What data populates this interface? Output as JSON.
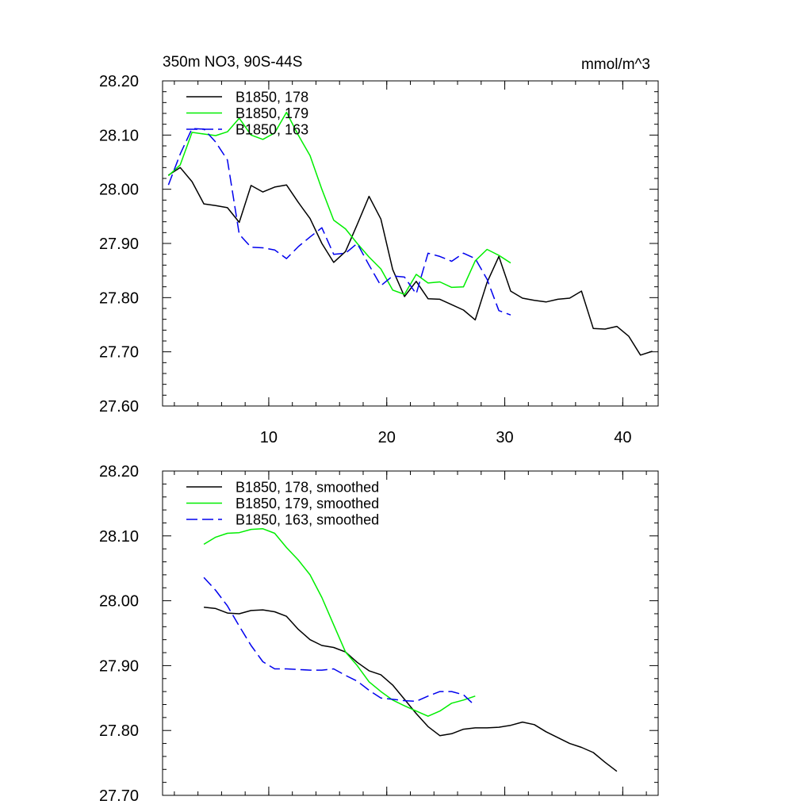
{
  "chart_data": [
    {
      "type": "line",
      "title_left": "350m NO3, 90S-44S",
      "title_right": "mmol/m^3",
      "xlim": [
        1,
        43
      ],
      "ylim": [
        27.6,
        28.2
      ],
      "x_ticks": [
        10,
        20,
        30,
        40
      ],
      "x_tick_labels": [
        "10",
        "20",
        "30",
        "40"
      ],
      "y_ticks": [
        27.6,
        27.7,
        27.8,
        27.9,
        28.0,
        28.1,
        28.2
      ],
      "y_tick_labels": [
        "27.60",
        "27.70",
        "27.80",
        "27.90",
        "28.00",
        "28.10",
        "28.20"
      ],
      "grid": false,
      "legend_position": "top-left",
      "series": [
        {
          "name": "B1850, 178",
          "color": "#000000",
          "dash": "solid",
          "x": [
            1.5,
            2.5,
            3.5,
            4.5,
            5.5,
            6.5,
            7.5,
            8.5,
            9.5,
            10.5,
            11.5,
            12.5,
            13.5,
            14.5,
            15.5,
            16.5,
            17.5,
            18.5,
            19.5,
            20.5,
            21.5,
            22.5,
            23.5,
            24.5,
            25.5,
            26.5,
            27.5,
            28.5,
            29.5,
            30.5,
            31.5,
            32.5,
            33.5,
            34.5,
            35.5,
            36.5,
            37.5,
            38.5,
            39.5,
            40.5,
            41.5,
            42.5
          ],
          "y": [
            28.026,
            28.04,
            28.014,
            27.973,
            27.97,
            27.966,
            27.939,
            28.007,
            27.995,
            28.004,
            28.008,
            27.976,
            27.946,
            27.9,
            27.865,
            27.885,
            27.935,
            27.987,
            27.945,
            27.852,
            27.802,
            27.83,
            27.798,
            27.797,
            27.787,
            27.777,
            27.759,
            27.828,
            27.876,
            27.812,
            27.799,
            27.795,
            27.792,
            27.797,
            27.799,
            27.812,
            27.743,
            27.742,
            27.747,
            27.729,
            27.694,
            27.701
          ]
        },
        {
          "name": "B1850, 179",
          "color": "#00ee00",
          "dash": "solid",
          "x": [
            1.5,
            2.5,
            3.5,
            4.5,
            5.5,
            6.5,
            7.5,
            8.5,
            9.5,
            10.5,
            11.5,
            12.5,
            13.5,
            14.5,
            15.5,
            16.5,
            17.5,
            18.5,
            19.5,
            20.5,
            21.5,
            22.5,
            23.5,
            24.5,
            25.5,
            26.5,
            27.5,
            28.5,
            29.5,
            30.5
          ],
          "y": [
            28.025,
            28.045,
            28.105,
            28.102,
            28.099,
            28.106,
            28.131,
            28.1,
            28.092,
            28.104,
            28.142,
            28.1,
            28.062,
            28.0,
            27.943,
            27.927,
            27.9,
            27.875,
            27.853,
            27.814,
            27.806,
            27.843,
            27.827,
            27.829,
            27.819,
            27.82,
            27.868,
            27.889,
            27.878,
            27.864
          ]
        },
        {
          "name": "B1850, 163",
          "color": "#0000ee",
          "dash": "dashed",
          "x": [
            1.5,
            2.5,
            3.5,
            4.5,
            5.5,
            6.5,
            7.5,
            8.5,
            9.5,
            10.5,
            11.5,
            12.5,
            13.5,
            14.5,
            15.5,
            16.5,
            17.5,
            18.5,
            19.5,
            20.5,
            21.5,
            22.5,
            23.5,
            24.5,
            25.5,
            26.5,
            27.5,
            28.5,
            29.5,
            30.5
          ],
          "y": [
            28.008,
            28.065,
            28.112,
            28.111,
            28.087,
            28.054,
            27.917,
            27.893,
            27.892,
            27.888,
            27.872,
            27.894,
            27.912,
            27.929,
            27.88,
            27.882,
            27.9,
            27.86,
            27.822,
            27.84,
            27.838,
            27.807,
            27.882,
            27.876,
            27.867,
            27.882,
            27.872,
            27.834,
            27.776,
            27.768
          ]
        }
      ]
    },
    {
      "type": "line",
      "xlim": [
        1,
        43
      ],
      "ylim": [
        27.7,
        28.2
      ],
      "x_ticks": [
        10,
        20,
        30,
        40
      ],
      "y_ticks": [
        27.7,
        27.8,
        27.9,
        28.0,
        28.1,
        28.2
      ],
      "y_tick_labels": [
        "27.70",
        "27.80",
        "27.90",
        "28.00",
        "28.10",
        "28.20"
      ],
      "grid": false,
      "legend_position": "top-left",
      "series": [
        {
          "name": "B1850, 178, smoothed",
          "color": "#000000",
          "dash": "solid",
          "x": [
            4.5,
            5.5,
            6.5,
            7.5,
            8.5,
            9.5,
            10.5,
            11.5,
            12.5,
            13.5,
            14.5,
            15.5,
            16.5,
            17.5,
            18.5,
            19.5,
            20.5,
            21.5,
            22.5,
            23.5,
            24.5,
            25.5,
            26.5,
            27.5,
            28.5,
            29.5,
            30.5,
            31.5,
            32.5,
            33.5,
            34.5,
            35.5,
            36.5,
            37.5,
            38.5,
            39.5
          ],
          "y": [
            27.99,
            27.988,
            27.981,
            27.98,
            27.985,
            27.986,
            27.983,
            27.976,
            27.956,
            27.94,
            27.931,
            27.928,
            27.921,
            27.905,
            27.892,
            27.886,
            27.87,
            27.848,
            27.826,
            27.806,
            27.792,
            27.795,
            27.802,
            27.804,
            27.804,
            27.805,
            27.808,
            27.813,
            27.809,
            27.798,
            27.789,
            27.78,
            27.774,
            27.766,
            27.751,
            27.737
          ]
        },
        {
          "name": "B1850, 179, smoothed",
          "color": "#00ee00",
          "dash": "solid",
          "x": [
            4.5,
            5.5,
            6.5,
            7.5,
            8.5,
            9.5,
            10.5,
            11.5,
            12.5,
            13.5,
            14.5,
            15.5,
            16.5,
            17.5,
            18.5,
            19.5,
            20.5,
            21.5,
            22.5,
            23.5,
            24.5,
            25.5,
            26.5,
            27.5
          ],
          "y": [
            28.087,
            28.098,
            28.104,
            28.105,
            28.11,
            28.111,
            28.104,
            28.082,
            28.063,
            28.04,
            28.005,
            27.963,
            27.921,
            27.9,
            27.875,
            27.86,
            27.847,
            27.838,
            27.83,
            27.822,
            27.83,
            27.842,
            27.847,
            27.853
          ]
        },
        {
          "name": "B1850, 163, smoothed",
          "color": "#0000ee",
          "dash": "dashed",
          "x": [
            4.5,
            5.5,
            6.5,
            7.5,
            8.5,
            9.5,
            10.5,
            11.5,
            12.5,
            13.5,
            14.5,
            15.5,
            16.5,
            17.5,
            18.5,
            19.5,
            20.5,
            21.5,
            22.5,
            23.5,
            24.5,
            25.5,
            26.5,
            27.5
          ],
          "y": [
            28.036,
            28.016,
            27.992,
            27.961,
            27.931,
            27.906,
            27.895,
            27.895,
            27.894,
            27.893,
            27.893,
            27.895,
            27.885,
            27.876,
            27.862,
            27.85,
            27.848,
            27.846,
            27.845,
            27.853,
            27.86,
            27.86,
            27.855,
            27.838
          ]
        }
      ]
    }
  ]
}
